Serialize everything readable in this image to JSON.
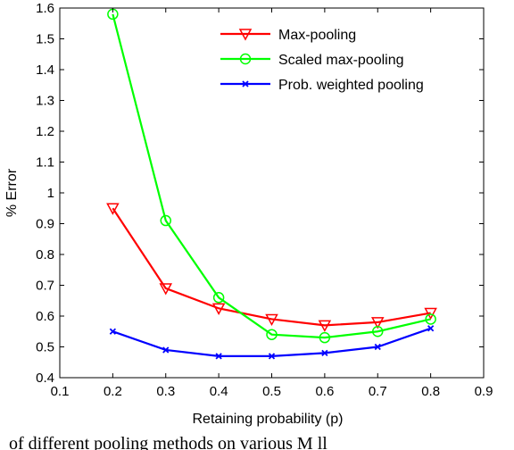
{
  "chart_data": {
    "type": "line",
    "title": "",
    "xlabel": "Retaining probability (p)",
    "ylabel": "% Error",
    "xlim": [
      0.1,
      0.9
    ],
    "ylim": [
      0.4,
      1.6
    ],
    "xticks": [
      "0.1",
      "0.2",
      "0.3",
      "0.4",
      "0.5",
      "0.6",
      "0.7",
      "0.8",
      "0.9"
    ],
    "yticks": [
      "0.4",
      "0.5",
      "0.6",
      "0.7",
      "0.8",
      "0.9",
      "1",
      "1.1",
      "1.2",
      "1.3",
      "1.4",
      "1.5",
      "1.6"
    ],
    "x": [
      0.2,
      0.3,
      0.4,
      0.5,
      0.6,
      0.7,
      0.8
    ],
    "legend_position": "top-right",
    "grid": false,
    "series": [
      {
        "name": "Max-pooling",
        "color": "#ff0000",
        "marker": "triangle-down",
        "values": [
          0.95,
          0.69,
          0.625,
          0.59,
          0.57,
          0.58,
          0.61
        ]
      },
      {
        "name": "Scaled max-pooling",
        "color": "#00ff00",
        "marker": "circle",
        "values": [
          1.58,
          0.91,
          0.66,
          0.54,
          0.53,
          0.55,
          0.59
        ]
      },
      {
        "name": "Prob. weighted pooling",
        "color": "#0000ff",
        "marker": "x",
        "values": [
          0.55,
          0.49,
          0.47,
          0.47,
          0.48,
          0.5,
          0.56
        ]
      }
    ]
  },
  "caption": {
    "text": "of different pooling methods on various  M    ll"
  }
}
